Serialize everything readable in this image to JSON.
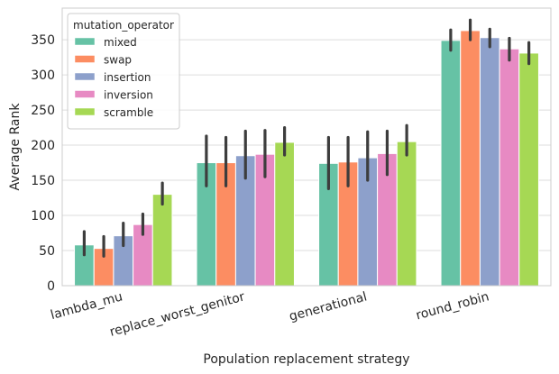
{
  "chart_data": {
    "type": "bar",
    "xlabel": "Population replacement strategy",
    "ylabel": "Average Rank",
    "categories": [
      "lambda_mu",
      "replace_worst_genitor",
      "generational",
      "round_robin"
    ],
    "ylim": [
      0,
      395
    ],
    "yticks": [
      0,
      50,
      100,
      150,
      200,
      250,
      300,
      350
    ],
    "grid": true,
    "legend": {
      "title": "mutation_operator",
      "position": "top-left"
    },
    "series": [
      {
        "name": "mixed",
        "color": "#66c2a5",
        "values": [
          58,
          175,
          174,
          349
        ],
        "ci": [
          [
            44,
            77
          ],
          [
            142,
            213
          ],
          [
            138,
            211
          ],
          [
            335,
            364
          ]
        ]
      },
      {
        "name": "swap",
        "color": "#fc8d62",
        "values": [
          53,
          175,
          176,
          363
        ],
        "ci": [
          [
            42,
            70
          ],
          [
            142,
            211
          ],
          [
            142,
            211
          ],
          [
            350,
            378
          ]
        ]
      },
      {
        "name": "insertion",
        "color": "#8da0cb",
        "values": [
          71,
          185,
          182,
          353
        ],
        "ci": [
          [
            57,
            89
          ],
          [
            153,
            220
          ],
          [
            150,
            219
          ],
          [
            340,
            365
          ]
        ]
      },
      {
        "name": "inversion",
        "color": "#e78ac3",
        "values": [
          87,
          187,
          188,
          337
        ],
        "ci": [
          [
            73,
            102
          ],
          [
            155,
            221
          ],
          [
            158,
            220
          ],
          [
            321,
            352
          ]
        ]
      },
      {
        "name": "scramble",
        "color": "#a6d854",
        "values": [
          130,
          204,
          205,
          331
        ],
        "ci": [
          [
            116,
            146
          ],
          [
            186,
            225
          ],
          [
            186,
            228
          ],
          [
            316,
            346
          ]
        ]
      }
    ]
  }
}
